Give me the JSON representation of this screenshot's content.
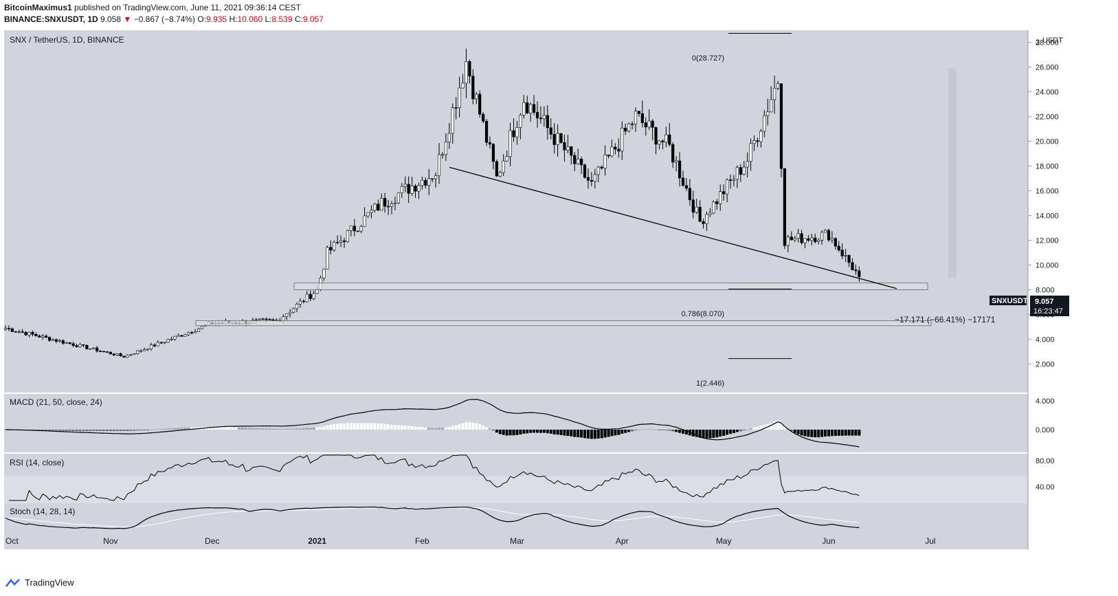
{
  "header": {
    "author": "BitcoinMaximus1",
    "published": "published on TradingView.com, June 11, 2021 09:36:14 CEST",
    "symbol_line": "BINANCE:SNXUSDT, 1D",
    "last": "9.058",
    "change": "−0.867 (−8.74%)",
    "o_label": "O:",
    "o": "9.935",
    "h_label": "H:",
    "h": "10.060",
    "l_label": "L:",
    "l": "8.539",
    "c_label": "C:",
    "c": "9.057"
  },
  "footer": {
    "brand": "TradingView"
  },
  "colors": {
    "panel_bg": "#d1d4dc",
    "up": "#ffffff",
    "down": "#000000",
    "text": "#131722",
    "accent_red": "#e0001b"
  },
  "chart_data": [
    {
      "type": "candlestick",
      "title": "SNX / TetherUS, 1D, BINANCE",
      "currency_label": "USDT",
      "yticks": [
        "2.000",
        "4.000",
        "6.000",
        "8.000",
        "10.000",
        "12.000",
        "14.000",
        "16.000",
        "18.000",
        "20.000",
        "22.000",
        "24.000",
        "26.000",
        "28.000"
      ],
      "top_tick": "3",
      "xticks": [
        "Oct",
        "Nov",
        "Dec",
        "2021",
        "Feb",
        "Mar",
        "Apr",
        "May",
        "Jun",
        "Jul"
      ],
      "price_tag": {
        "symbol": "SNXUSDT",
        "price": "9.057",
        "countdown": "16:23:47"
      },
      "fib_labels": {
        "zero": "0(28.727)",
        "fib786": "0.786(8.070)",
        "one": "1(2.446)"
      },
      "measure_label": "−17.171 (−66.41%) −17171",
      "key_points": [
        {
          "date": "2020-10-01",
          "close": 4.9
        },
        {
          "date": "2020-11-05",
          "close": 2.6
        },
        {
          "date": "2020-12-01",
          "close": 5.3
        },
        {
          "date": "2020-12-20",
          "close": 5.5
        },
        {
          "date": "2021-01-01",
          "close": 8.0
        },
        {
          "date": "2021-01-04",
          "close": 11.0
        },
        {
          "date": "2021-01-20",
          "close": 15.0
        },
        {
          "date": "2021-02-05",
          "close": 17.5
        },
        {
          "date": "2021-02-14",
          "close": 26.5
        },
        {
          "date": "2021-02-23",
          "close": 17.0
        },
        {
          "date": "2021-03-03",
          "close": 23.5
        },
        {
          "date": "2021-03-23",
          "close": 16.5
        },
        {
          "date": "2021-04-05",
          "close": 22.0
        },
        {
          "date": "2021-04-15",
          "close": 19.5
        },
        {
          "date": "2021-04-24",
          "close": 13.5
        },
        {
          "date": "2021-05-08",
          "close": 18.5
        },
        {
          "date": "2021-05-17",
          "close": 25.0
        },
        {
          "date": "2021-05-19",
          "close": 12.0
        },
        {
          "date": "2021-06-01",
          "close": 12.5
        },
        {
          "date": "2021-06-10",
          "close": 9.06
        }
      ]
    },
    {
      "type": "line",
      "title": "MACD (21, 50, close, 24)",
      "yticks": [
        "4.000",
        "0.000"
      ]
    },
    {
      "type": "line",
      "title": "RSI (14, close)",
      "yticks": [
        "80.00",
        "40.00"
      ]
    },
    {
      "type": "line",
      "title": "Stoch (14, 28, 14)"
    }
  ]
}
